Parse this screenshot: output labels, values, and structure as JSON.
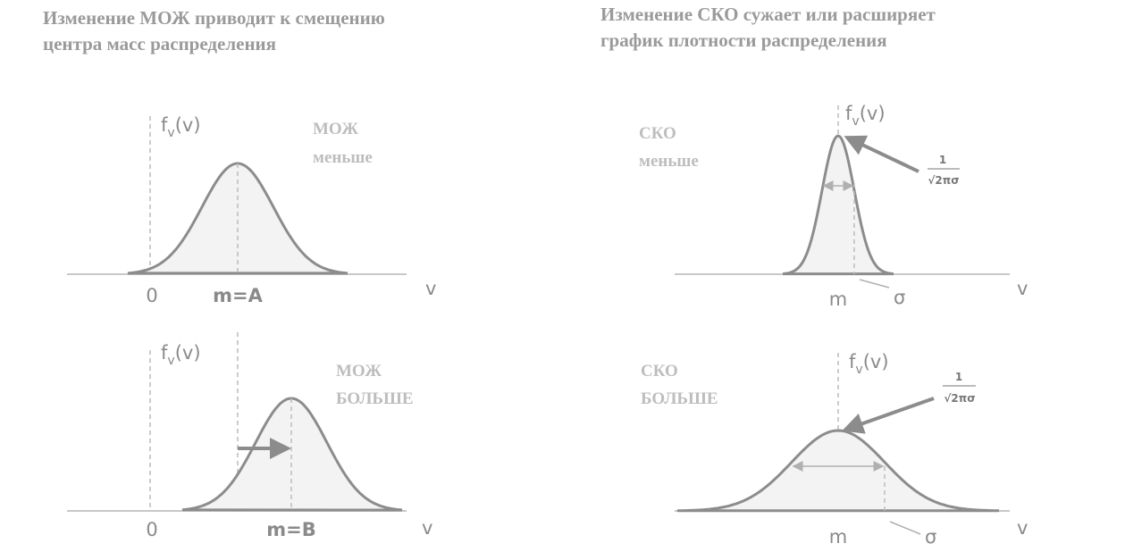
{
  "left_heading": [
    "Изменение МОЖ приводит к смещению",
    "центра масс распределения"
  ],
  "right_heading": [
    "Изменение СКО сужает или расширяет",
    "график плотности распределения"
  ],
  "panels": [
    {
      "fv": {
        "f": "f",
        "sub": "v",
        "arg": "(v)"
      },
      "label_lines": [
        "МОЖ",
        "меньше"
      ],
      "origin": "0",
      "mean": "m=A",
      "axis": "v"
    },
    {
      "fv": {
        "f": "f",
        "sub": "v",
        "arg": "(v)"
      },
      "label_lines": [
        "МОЖ",
        "БОЛЬШЕ"
      ],
      "origin": "0",
      "mean": "m=B",
      "axis": "v"
    },
    {
      "fv": {
        "f": "f",
        "sub": "v",
        "arg": "(v)"
      },
      "label_lines": [
        "СКО",
        "меньше"
      ],
      "mean": "m",
      "sigma": "σ",
      "axis": "v",
      "fraction": {
        "num": "1",
        "den": "√2πσ"
      }
    },
    {
      "fv": {
        "f": "f",
        "sub": "v",
        "arg": "(v)"
      },
      "label_lines": [
        "СКО",
        "БОЛЬШЕ"
      ],
      "mean": "m",
      "sigma": "σ",
      "axis": "v",
      "fraction": {
        "num": "1",
        "den": "√2πσ"
      }
    }
  ]
}
